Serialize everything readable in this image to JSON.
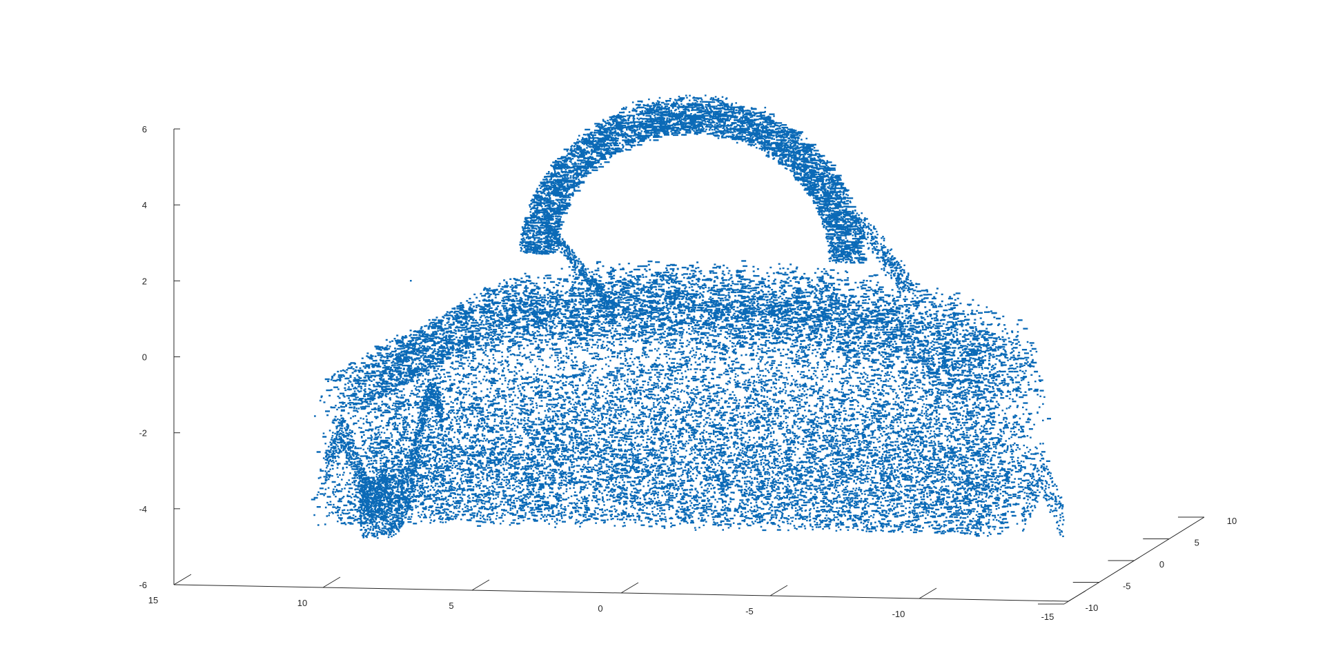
{
  "chart_data": {
    "type": "scatter",
    "dimensions": 3,
    "title": "",
    "xlabel": "",
    "ylabel": "",
    "zlabel": "",
    "grid": false,
    "marker_color": "#0072BD",
    "xlim": [
      -15,
      15
    ],
    "ylim": [
      -10,
      10
    ],
    "zlim": [
      -6,
      6
    ],
    "x_ticks": [
      "15",
      "10",
      "5",
      "0",
      "-5",
      "-10",
      "-15"
    ],
    "y_ticks": [
      "-10",
      "-5",
      "0",
      "5",
      "10"
    ],
    "z_ticks": [
      "6",
      "4",
      "2",
      "0",
      "-2",
      "-4",
      "-6"
    ],
    "series": [
      {
        "components": [
          {
            "part": "body",
            "x_range": [
              -13,
              9
            ],
            "z_range": [
              -4.5,
              2.3
            ]
          },
          {
            "part": "handle",
            "x_range": [
              -10,
              2
            ],
            "z_range": [
              1,
              6.6
            ]
          },
          {
            "part": "spout",
            "x_range": [
              6,
              10
            ],
            "z_range": [
              -4.9,
              -0.5
            ]
          },
          {
            "part": "isolated-blob",
            "x_range": [
              -15,
              -13
            ],
            "z_range": [
              -4.8,
              -2.3
            ]
          }
        ]
      }
    ]
  }
}
